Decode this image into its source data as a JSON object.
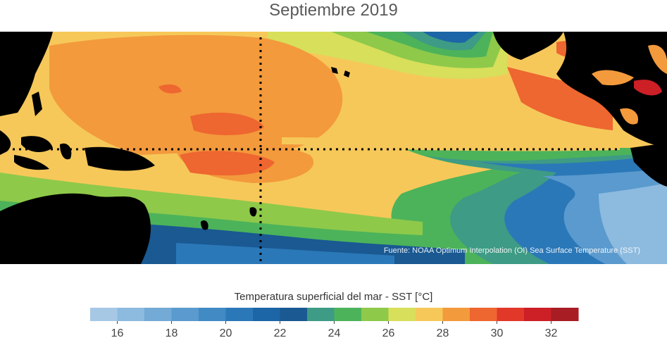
{
  "title": "Septiembre 2019",
  "source": "Fuente: NOAA Optimum Interpolation (OI) Sea Surface Temperature (SST)",
  "colorbar": {
    "label": "Temperatura superficial del mar - SST  [°C]",
    "colors": [
      "#a6c8e4",
      "#8dbadf",
      "#73aad6",
      "#5a9ace",
      "#418ac4",
      "#2b78b8",
      "#1c65a6",
      "#1a5992",
      "#3e9b85",
      "#4cb35a",
      "#8ec94a",
      "#d8df5a",
      "#f6c85a",
      "#f39a3c",
      "#ee6630",
      "#e1382a",
      "#cc1f26",
      "#a81d24"
    ],
    "min": 15,
    "max": 33,
    "ticks": [
      16,
      18,
      20,
      22,
      24,
      26,
      28,
      30,
      32
    ]
  }
}
